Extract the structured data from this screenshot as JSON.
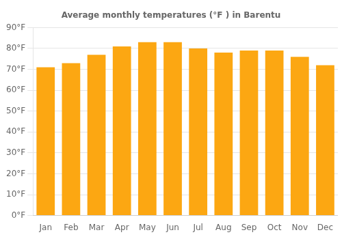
{
  "chart_data": {
    "type": "bar",
    "title": "Average monthly temperatures (°F ) in Barentu",
    "categories": [
      "Jan",
      "Feb",
      "Mar",
      "Apr",
      "May",
      "Jun",
      "Jul",
      "Aug",
      "Sep",
      "Oct",
      "Nov",
      "Dec"
    ],
    "values": [
      71,
      73,
      77,
      81,
      83,
      83,
      80,
      78,
      79,
      79,
      76,
      72
    ],
    "color": "#FCA712",
    "ylim": [
      0,
      90
    ],
    "yticks": [
      {
        "value": 0,
        "label": "0°F"
      },
      {
        "value": 10,
        "label": "10°F"
      },
      {
        "value": 20,
        "label": "20°F"
      },
      {
        "value": 30,
        "label": "30°F"
      },
      {
        "value": 40,
        "label": "40°F"
      },
      {
        "value": 50,
        "label": "50°F"
      },
      {
        "value": 60,
        "label": "60°F"
      },
      {
        "value": 70,
        "label": "70°F"
      },
      {
        "value": 80,
        "label": "80°F"
      },
      {
        "value": 90,
        "label": "90°F"
      }
    ],
    "grid": true
  }
}
